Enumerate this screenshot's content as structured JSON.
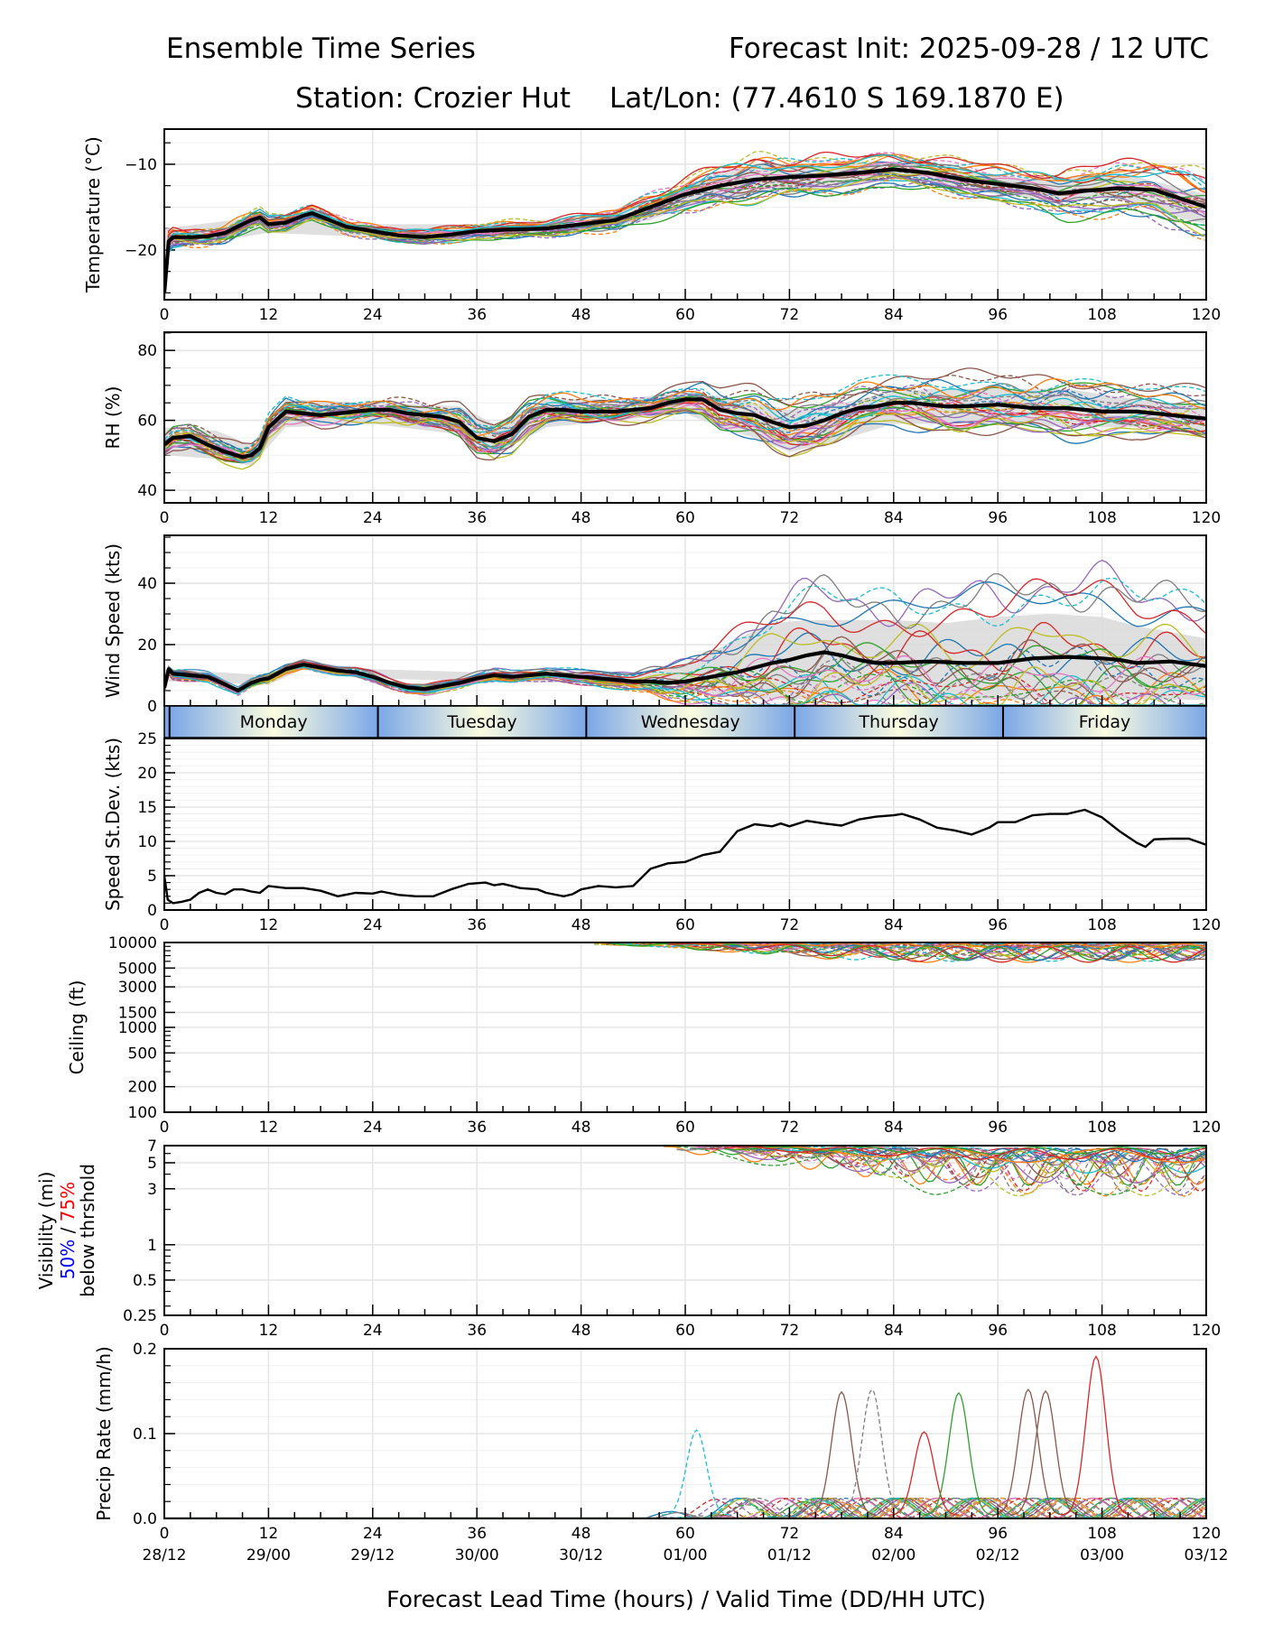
{
  "header": {
    "title_left": "Ensemble Time Series",
    "title_right": "Forecast Init: 2025-09-28 / 12 UTC",
    "station": "Station: Crozier Hut",
    "latlon": "Lat/Lon: (77.4610 S 169.1870 E)"
  },
  "xaxis": {
    "label": "Forecast Lead Time (hours) / Valid Time (DD/HH UTC)",
    "ticks": [
      0,
      12,
      24,
      36,
      48,
      60,
      72,
      84,
      96,
      108,
      120
    ],
    "tick_labels": [
      "0",
      "12",
      "24",
      "36",
      "48",
      "60",
      "72",
      "84",
      "96",
      "108",
      "120"
    ],
    "valid_labels": [
      "28/12",
      "29/00",
      "29/12",
      "30/00",
      "30/12",
      "01/00",
      "01/12",
      "02/00",
      "02/12",
      "03/00",
      "03/12"
    ],
    "range": [
      0,
      120
    ]
  },
  "day_band": {
    "days": [
      "Monday",
      "Tuesday",
      "Wednesday",
      "Thursday",
      "Friday"
    ],
    "boundaries_hours": [
      0.6,
      24.6,
      48.6,
      72.6,
      96.6,
      120
    ],
    "edge_color": "#7ba7e6",
    "center_color": "#fcfde0"
  },
  "colors": {
    "members": [
      "#1f77b4",
      "#ff7f0e",
      "#2ca02c",
      "#d62728",
      "#9467bd",
      "#8c564b",
      "#e377c2",
      "#7f7f7f",
      "#bcbd22",
      "#17becf"
    ],
    "mean": "#000000",
    "spread": "#d9d9d9",
    "grid": "#e6e6e6",
    "legend_50": "#0000ff",
    "legend_75": "#ff0000"
  },
  "chart_data": [
    {
      "id": "temperature",
      "type": "line",
      "ylabel": "Temperature (°C)",
      "ylim": [
        -25.8,
        -5.9
      ],
      "yticks": [
        -20,
        -10
      ],
      "ytick_labels": [
        "−20",
        "−10"
      ],
      "yminor_step": 2.5,
      "grid": true,
      "ensemble_mean": {
        "x": [
          0,
          0.5,
          1,
          3,
          5,
          7,
          9,
          10,
          11,
          12,
          14,
          16,
          17,
          19,
          21,
          24,
          27,
          30,
          33,
          36,
          40,
          44,
          48,
          52,
          56,
          60,
          64,
          68,
          72,
          76,
          80,
          84,
          88,
          92,
          96,
          100,
          103,
          106,
          110,
          114,
          117,
          120
        ],
        "y": [
          -25,
          -19,
          -18.5,
          -18.5,
          -18.4,
          -18,
          -17,
          -16.5,
          -16.2,
          -17,
          -16.8,
          -16,
          -15.7,
          -16.5,
          -17.3,
          -17.8,
          -18.3,
          -18.5,
          -18.2,
          -17.8,
          -17.6,
          -17.5,
          -17,
          -16.5,
          -15,
          -13.5,
          -12.5,
          -11.8,
          -11.5,
          -11.3,
          -11,
          -10.6,
          -11,
          -11.8,
          -12.3,
          -12.8,
          -13.4,
          -13.1,
          -12.8,
          -13,
          -14,
          -15
        ]
      },
      "spread_upper": {
        "x": [
          0,
          12,
          24,
          36,
          48,
          56,
          60,
          64,
          68,
          72,
          76,
          80,
          84,
          88,
          92,
          96,
          100,
          104,
          108,
          112,
          116,
          120
        ],
        "y": [
          -17.5,
          -16,
          -17,
          -17,
          -16.2,
          -14.2,
          -12.5,
          -11,
          -10,
          -10,
          -10,
          -9.8,
          -9.6,
          -10,
          -10.6,
          -11.2,
          -11.8,
          -11.5,
          -11,
          -11.5,
          -12.5,
          -13.5
        ]
      },
      "spread_lower": {
        "x": [
          0,
          12,
          24,
          36,
          48,
          56,
          60,
          64,
          68,
          72,
          76,
          80,
          84,
          88,
          92,
          96,
          100,
          104,
          108,
          112,
          116,
          120
        ],
        "y": [
          -20,
          -18,
          -18.5,
          -18.5,
          -17.8,
          -16.5,
          -15,
          -14,
          -13.5,
          -13,
          -12.8,
          -12.2,
          -11.8,
          -12.3,
          -13,
          -13.5,
          -14,
          -14.5,
          -14,
          -14.5,
          -16,
          -17
        ]
      }
    },
    {
      "id": "rh",
      "type": "line",
      "ylabel": "RH (%)",
      "ylim": [
        36.4,
        85.2
      ],
      "yticks": [
        40,
        60,
        80
      ],
      "ytick_labels": [
        "40",
        "60",
        "80"
      ],
      "yminor_step": 5,
      "grid": true,
      "ensemble_mean": {
        "x": [
          0,
          1,
          3,
          5,
          7,
          9,
          10,
          11,
          12,
          14,
          16,
          18,
          20,
          22,
          24,
          26,
          28,
          30,
          32,
          34,
          36,
          38,
          40,
          42,
          44,
          46,
          48,
          50,
          52,
          54,
          56,
          58,
          60,
          62,
          64,
          66,
          68,
          70,
          72,
          74,
          76,
          78,
          80,
          82,
          84,
          86,
          88,
          90,
          92,
          96,
          100,
          104,
          108,
          112,
          116,
          120
        ],
        "y": [
          53,
          55,
          55.5,
          53,
          51,
          49.5,
          50,
          52,
          58,
          62.5,
          62,
          61.5,
          62,
          62.5,
          63,
          63,
          62,
          61.5,
          61,
          59.5,
          55,
          54,
          56,
          61,
          63,
          63,
          62.5,
          62.5,
          62.5,
          63,
          63.5,
          65,
          66,
          66,
          63,
          62,
          61.5,
          59.5,
          58,
          58.5,
          60,
          62,
          63.5,
          64,
          65,
          65,
          64.5,
          64,
          64,
          64.5,
          63.5,
          63.5,
          62.5,
          62.5,
          61.5,
          60.5
        ]
      },
      "spread_upper": {
        "x": [
          0,
          6,
          10,
          14,
          24,
          34,
          38,
          44,
          52,
          60,
          64,
          68,
          72,
          76,
          80,
          84,
          88,
          96,
          104,
          112,
          120
        ],
        "y": [
          58,
          57,
          53,
          66,
          65,
          64,
          59,
          66,
          66,
          68,
          67,
          65,
          63,
          64,
          66,
          68,
          69,
          69,
          69,
          66,
          64
        ]
      },
      "spread_lower": {
        "x": [
          0,
          6,
          10,
          14,
          24,
          34,
          38,
          44,
          52,
          60,
          64,
          68,
          72,
          76,
          80,
          84,
          88,
          96,
          104,
          112,
          120
        ],
        "y": [
          50,
          49,
          47,
          58,
          59,
          56,
          50,
          58,
          60,
          62,
          58,
          55,
          51,
          53,
          56,
          59,
          59,
          59,
          58,
          58,
          56
        ]
      }
    },
    {
      "id": "wind_speed",
      "type": "line",
      "ylabel": "Wind Speed (kts)",
      "ylim": [
        0,
        55.6
      ],
      "yticks": [
        0,
        20,
        40
      ],
      "ytick_labels": [
        "0",
        "20",
        "40"
      ],
      "yminor_step": 5,
      "grid": true,
      "ensemble_mean": {
        "x": [
          0,
          0.5,
          1,
          3,
          5,
          7,
          8.5,
          10,
          11,
          12,
          14,
          16,
          18,
          20,
          22,
          24,
          26,
          28,
          30,
          32,
          34,
          36,
          38,
          40,
          42,
          44,
          46,
          48,
          50,
          52,
          54,
          56,
          58,
          60,
          62,
          64,
          66,
          68,
          70,
          72,
          74,
          76,
          78,
          80,
          82,
          84,
          88,
          92,
          96,
          100,
          104,
          108,
          110,
          112,
          116,
          120
        ],
        "y": [
          6,
          12,
          10.5,
          10,
          9.5,
          7,
          5,
          7.5,
          8.5,
          9,
          12,
          13.5,
          12.5,
          11.5,
          11,
          9.5,
          7.5,
          6,
          5.5,
          6.5,
          7.5,
          9,
          10,
          9.5,
          10,
          10.5,
          10,
          9.5,
          9,
          8.5,
          8,
          8,
          7.5,
          8,
          9,
          10,
          11,
          12.5,
          14,
          15,
          16.5,
          17.5,
          16.5,
          15,
          14,
          14,
          14.5,
          14,
          14,
          15.5,
          16,
          15.5,
          15,
          14,
          14.5,
          13
        ]
      },
      "spread_upper": {
        "x": [
          0,
          12,
          16,
          24,
          36,
          48,
          54,
          58,
          62,
          66,
          70,
          74,
          78,
          84,
          90,
          96,
          102,
          108,
          112,
          116,
          120
        ],
        "y": [
          12,
          10,
          14.5,
          12,
          11,
          11,
          10,
          12,
          16,
          22,
          27,
          28,
          28,
          28,
          27,
          29,
          30,
          29,
          26,
          24,
          22
        ]
      },
      "spread_lower": {
        "x": [
          0,
          12,
          16,
          24,
          36,
          48,
          54,
          58,
          62,
          66,
          70,
          74,
          78,
          84,
          90,
          96,
          102,
          108,
          112,
          116,
          120
        ],
        "y": [
          8,
          7,
          12,
          9,
          8,
          7.5,
          6,
          5,
          4,
          3,
          2,
          2,
          2,
          2,
          2,
          2,
          2,
          2,
          2,
          2,
          2
        ]
      }
    },
    {
      "id": "speed_stdev",
      "type": "line",
      "ylabel": "Speed St.Dev. (kts)",
      "ylim": [
        0,
        25
      ],
      "yticks": [
        0,
        5,
        10,
        15,
        20,
        25
      ],
      "ytick_labels": [
        "0",
        "5",
        "10",
        "15",
        "20",
        "25"
      ],
      "yminor_step": 1,
      "grid": true,
      "series": [
        {
          "name": "speed_stdev",
          "x": [
            0,
            0.4,
            1,
            2,
            3,
            4,
            5,
            6,
            7,
            8,
            9,
            10,
            11,
            12,
            14,
            16,
            18,
            20,
            22,
            24,
            25,
            27,
            29,
            31,
            33,
            35,
            37,
            38,
            39,
            41,
            43,
            44,
            46,
            47,
            48,
            50,
            52,
            54,
            56,
            58,
            60,
            62,
            64,
            66,
            68,
            70,
            71,
            72,
            74,
            76,
            78,
            80,
            82,
            84,
            85,
            87,
            89,
            91,
            93,
            95,
            96,
            98,
            100,
            102,
            104,
            106,
            108,
            110,
            112,
            113,
            114,
            116,
            118,
            120
          ],
          "y": [
            5,
            1.5,
            1,
            1.2,
            1.5,
            2.5,
            3,
            2.5,
            2.3,
            3,
            3,
            2.7,
            2.5,
            3.5,
            3.2,
            3.2,
            2.8,
            2,
            2.5,
            2.4,
            2.7,
            2.2,
            2,
            2,
            3,
            3.8,
            4,
            3.6,
            3.8,
            3.2,
            3,
            2.5,
            2,
            2.3,
            3,
            3.5,
            3.3,
            3.5,
            6,
            6.8,
            7,
            8,
            8.5,
            11.5,
            12.5,
            12.2,
            12.6,
            12.2,
            13,
            12.6,
            12.3,
            13.2,
            13.6,
            13.8,
            14,
            13.2,
            12,
            11.6,
            11,
            12,
            12.8,
            12.8,
            13.8,
            14,
            14,
            14.6,
            13.5,
            11.5,
            9.8,
            9.2,
            10.3,
            10.4,
            10.4,
            9.5
          ]
        }
      ]
    },
    {
      "id": "ceiling",
      "type": "line",
      "scale": "log",
      "ylabel": "Ceiling (ft)",
      "ylim": [
        100,
        10000
      ],
      "yticks": [
        100,
        200,
        500,
        1000,
        1500,
        3000,
        5000,
        10000
      ],
      "ytick_labels": [
        "100",
        "200",
        "500",
        "1000",
        "1500",
        "3000",
        "5000",
        "10000"
      ],
      "grid": true,
      "members_region": {
        "x_start_hours": 49,
        "typical_range_ft": [
          4000,
          10000
        ]
      }
    },
    {
      "id": "visibility",
      "type": "line",
      "scale": "log",
      "ylabel": "Visibility (mi)",
      "ylabel_extra": {
        "p50": "50%",
        "sep": " / ",
        "p75": "75%",
        "suffix": "below thrshold"
      },
      "ylim": [
        0.25,
        7
      ],
      "yticks": [
        0.25,
        0.5,
        1,
        3,
        5,
        7
      ],
      "ytick_labels": [
        "0.25",
        "0.5",
        "1",
        "3",
        "5",
        "7"
      ],
      "grid": true,
      "members_region": {
        "x_start_hours": 57,
        "typical_range_mi": [
          1.5,
          7
        ]
      }
    },
    {
      "id": "precip_rate",
      "type": "line",
      "ylabel": "Precip Rate (mm/h)",
      "ylim": [
        0,
        0.2
      ],
      "yticks": [
        0,
        0.1,
        0.2
      ],
      "ytick_labels": [
        "0.0",
        "0.1",
        "0.2"
      ],
      "yminor_step": 0.02,
      "grid": true,
      "peaks": [
        {
          "member": "cyan-dashed",
          "x": 61.3,
          "y": 0.1
        },
        {
          "member": "brown",
          "x": 78,
          "y": 0.145
        },
        {
          "member": "gray-dashed",
          "x": 81.5,
          "y": 0.148
        },
        {
          "member": "red",
          "x": 87.5,
          "y": 0.098
        },
        {
          "member": "green",
          "x": 91.5,
          "y": 0.144
        },
        {
          "member": "brown",
          "x": 99.5,
          "y": 0.148
        },
        {
          "member": "brown",
          "x": 101.5,
          "y": 0.146
        },
        {
          "member": "red",
          "x": 107.3,
          "y": 0.187
        }
      ]
    }
  ]
}
